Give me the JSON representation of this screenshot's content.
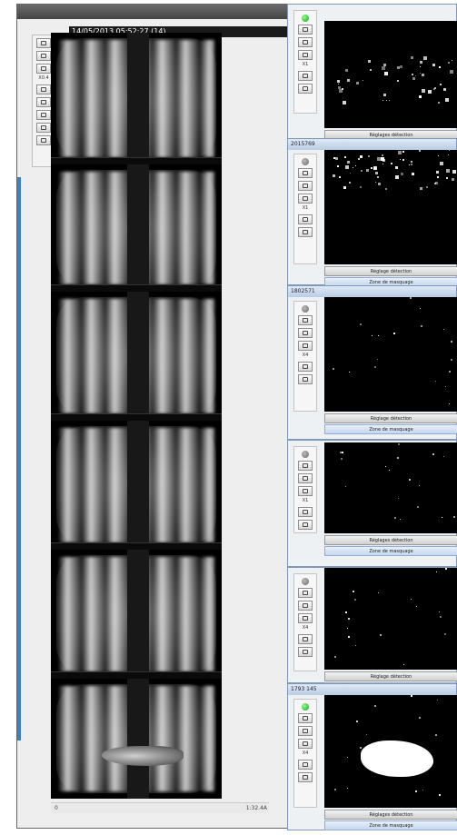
{
  "main_window": {
    "caption": "14/05/2013 05:52:27 (14)",
    "zoom_label": "X0.4",
    "status_left": "0",
    "status_right": "1:32.4A"
  },
  "cameras": [
    {
      "title": "",
      "active": true,
      "zoom_label": "X1",
      "status_button": "Réglages détection",
      "mask_button": "Zone de masquage"
    },
    {
      "title": "2015769",
      "active": false,
      "zoom_label": "X1",
      "status_button": "Réglage détection",
      "mask_button": "Zone de masquage"
    },
    {
      "title": "1802571",
      "active": false,
      "zoom_label": "X4",
      "status_button": "Réglage détection",
      "mask_button": "Zone de masquage"
    },
    {
      "title": "",
      "active": false,
      "zoom_label": "X1",
      "status_button": "Réglages détection",
      "mask_button": "Zone de masquage"
    },
    {
      "title": "",
      "active": false,
      "zoom_label": "X4",
      "status_button": "Réglage détection",
      "mask_button": "Zone de masquage"
    },
    {
      "title": "1793 145",
      "active": true,
      "zoom_label": "X4",
      "status_button": "Réglages détection",
      "mask_button": "Zone de masquage"
    }
  ],
  "colors": {
    "active_led": "#13a813",
    "inactive_led": "#6c6c6c",
    "panel_border": "#7f98b8",
    "accent_strip": "#3c7fc4"
  }
}
